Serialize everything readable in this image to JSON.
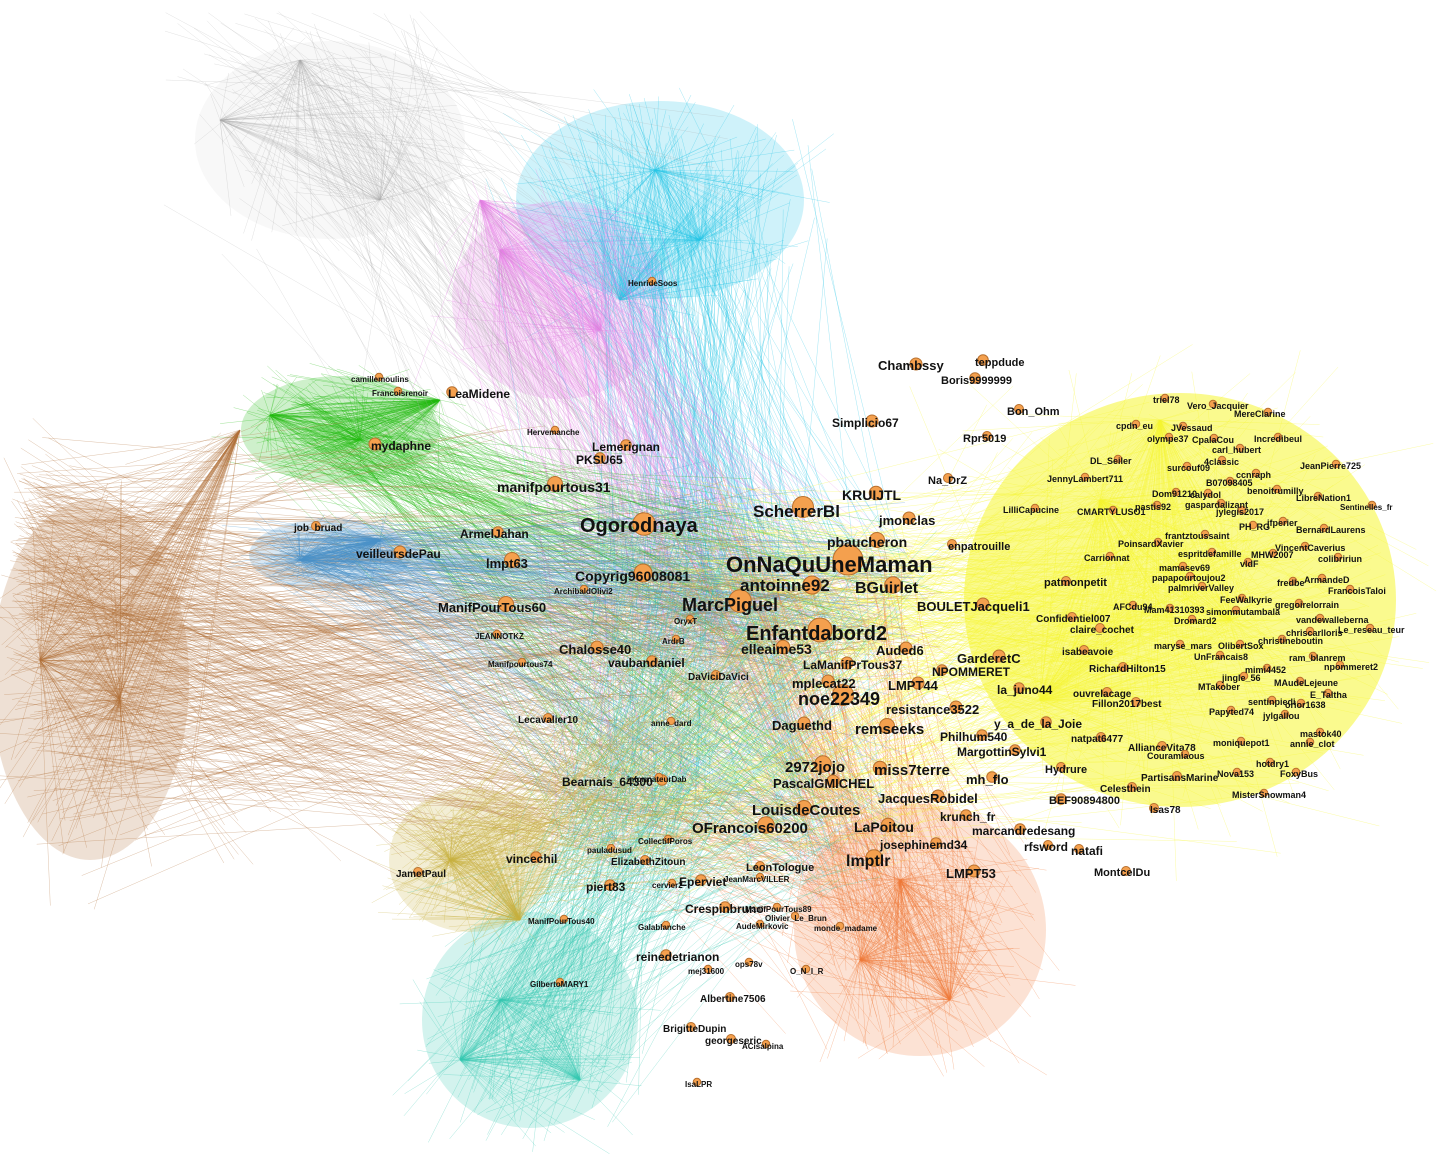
{
  "colors": {
    "node_fill": "#f4a04e",
    "node_stroke": "#b8702e",
    "label": "#111111",
    "background": "#ffffff"
  },
  "clusters": [
    {
      "name": "cyan",
      "color": "#26c6e6"
    },
    {
      "name": "pink",
      "color": "#e680e6"
    },
    {
      "name": "green",
      "color": "#22bb11"
    },
    {
      "name": "yellow",
      "color": "#f5f532"
    },
    {
      "name": "brown",
      "color": "#b0703a"
    },
    {
      "name": "steel",
      "color": "#4a90c8"
    },
    {
      "name": "orange",
      "color": "#f07a3a"
    },
    {
      "name": "teal",
      "color": "#35c9b0"
    },
    {
      "name": "olive",
      "color": "#c8b040"
    },
    {
      "name": "grey",
      "color": "#aaaaaa"
    }
  ],
  "nodes": [
    {
      "id": "OnNaQuUneMaman",
      "size": 20,
      "label_size": 22
    },
    {
      "id": "Ogorodnaya",
      "size": 15,
      "label_size": 20
    },
    {
      "id": "Enfantdabord2",
      "size": 16,
      "label_size": 20
    },
    {
      "id": "MarcPiguel",
      "size": 15,
      "label_size": 18
    },
    {
      "id": "noe22349",
      "size": 14,
      "label_size": 18
    },
    {
      "id": "ScherrerBl",
      "size": 14,
      "label_size": 17
    },
    {
      "id": "antoinne92",
      "size": 12,
      "label_size": 17
    },
    {
      "id": "BGuirlet",
      "size": 11,
      "label_size": 16
    },
    {
      "id": "Copyrig96008081",
      "size": 12,
      "label_size": 14
    },
    {
      "id": "manifpourtous31",
      "size": 10,
      "label_size": 14
    },
    {
      "id": "ManifPourTous60",
      "size": 10,
      "label_size": 13
    },
    {
      "id": "lmpt63",
      "size": 10,
      "label_size": 13
    },
    {
      "id": "KRUIJTL",
      "size": 9,
      "label_size": 14
    },
    {
      "id": "pbaucheron",
      "size": 10,
      "label_size": 14
    },
    {
      "id": "jmonclas",
      "size": 8,
      "label_size": 13
    },
    {
      "id": "2972jojo",
      "size": 11,
      "label_size": 15
    },
    {
      "id": "miss7terre",
      "size": 9,
      "label_size": 15
    },
    {
      "id": "remseeks",
      "size": 10,
      "label_size": 15
    },
    {
      "id": "OFrancois60200",
      "size": 11,
      "label_size": 15
    },
    {
      "id": "LouisdeCoutes",
      "size": 10,
      "label_size": 15
    },
    {
      "id": "lmptlr",
      "size": 11,
      "label_size": 16
    },
    {
      "id": "LaPoitou",
      "size": 9,
      "label_size": 14
    },
    {
      "id": "Chambssy",
      "size": 8,
      "label_size": 13
    },
    {
      "id": "teppdude",
      "size": 7,
      "label_size": 11
    },
    {
      "id": "Boris9999999",
      "size": 7,
      "label_size": 11
    },
    {
      "id": "Simplicio67",
      "size": 8,
      "label_size": 12
    },
    {
      "id": "Rpr5019",
      "size": 6,
      "label_size": 11
    },
    {
      "id": "Na_DrZ",
      "size": 6,
      "label_size": 11
    },
    {
      "id": "Bon_Ohm",
      "size": 6,
      "label_size": 11
    },
    {
      "id": "enpatrouille",
      "size": 6,
      "label_size": 11
    },
    {
      "id": "BOULETJacqueli1",
      "size": 8,
      "label_size": 13
    },
    {
      "id": "GarderetC",
      "size": 8,
      "label_size": 13
    },
    {
      "id": "NPOMMERET",
      "size": 7,
      "label_size": 12
    },
    {
      "id": "la_juno44",
      "size": 7,
      "label_size": 12
    },
    {
      "id": "resistance3522",
      "size": 8,
      "label_size": 13
    },
    {
      "id": "y_a_de_la_Joie",
      "size": 7,
      "label_size": 12
    },
    {
      "id": "Philhum540",
      "size": 7,
      "label_size": 12
    },
    {
      "id": "MargottinSylvi1",
      "size": 7,
      "label_size": 12
    },
    {
      "id": "mh_flo",
      "size": 7,
      "label_size": 13
    },
    {
      "id": "Hydrure",
      "size": 6,
      "label_size": 11
    },
    {
      "id": "JacquesRobidel",
      "size": 8,
      "label_size": 13
    },
    {
      "id": "BEF90894800",
      "size": 7,
      "label_size": 11
    },
    {
      "id": "krunch_fr",
      "size": 7,
      "label_size": 12
    },
    {
      "id": "marcandredesang",
      "size": 7,
      "label_size": 12
    },
    {
      "id": "rfsword",
      "size": 6,
      "label_size": 12
    },
    {
      "id": "natafi",
      "size": 6,
      "label_size": 12
    },
    {
      "id": "josephinemd34",
      "size": 7,
      "label_size": 12
    },
    {
      "id": "LMPT53",
      "size": 8,
      "label_size": 13
    },
    {
      "id": "MontcelDu",
      "size": 6,
      "label_size": 11
    },
    {
      "id": "Isas78",
      "size": 6,
      "label_size": 10
    },
    {
      "id": "PascalGMICHEL",
      "size": 8,
      "label_size": 13
    },
    {
      "id": "Daguethd",
      "size": 8,
      "label_size": 13
    },
    {
      "id": "LMPT44",
      "size": 8,
      "label_size": 13
    },
    {
      "id": "mplecat22",
      "size": 8,
      "label_size": 13
    },
    {
      "id": "LaManifPrTous37",
      "size": 8,
      "label_size": 12
    },
    {
      "id": "Auded6",
      "size": 8,
      "label_size": 13
    },
    {
      "id": "elleaime53",
      "size": 9,
      "label_size": 14
    },
    {
      "id": "Chalosse40",
      "size": 8,
      "label_size": 13
    },
    {
      "id": "vaubandaniel",
      "size": 7,
      "label_size": 12
    },
    {
      "id": "veilleursdePau",
      "size": 8,
      "label_size": 12
    },
    {
      "id": "ArmelJahan",
      "size": 7,
      "label_size": 12
    },
    {
      "id": "mydaphne",
      "size": 8,
      "label_size": 12
    },
    {
      "id": "LeaMidene",
      "size": 7,
      "label_size": 12
    },
    {
      "id": "Lemerignan",
      "size": 7,
      "label_size": 12
    },
    {
      "id": "PKSU65",
      "size": 7,
      "label_size": 12
    },
    {
      "id": "Bearnais_64300",
      "size": 7,
      "label_size": 12
    },
    {
      "id": "vincechil",
      "size": 7,
      "label_size": 12
    },
    {
      "id": "JametPaul",
      "size": 6,
      "label_size": 10
    },
    {
      "id": "piert83",
      "size": 7,
      "label_size": 12
    },
    {
      "id": "Eperviet",
      "size": 7,
      "label_size": 12
    },
    {
      "id": "Crespinbruno",
      "size": 7,
      "label_size": 12
    },
    {
      "id": "reinedetrianon",
      "size": 7,
      "label_size": 12
    },
    {
      "id": "Albertine7506",
      "size": 6,
      "label_size": 10
    },
    {
      "id": "BrigitteDupin",
      "size": 6,
      "label_size": 10
    },
    {
      "id": "georgeseric",
      "size": 6,
      "label_size": 10
    },
    {
      "id": "LeonTologue",
      "size": 6,
      "label_size": 11
    },
    {
      "id": "ElizabethZitoun",
      "size": 6,
      "label_size": 10
    },
    {
      "id": "Lecavalier10",
      "size": 6,
      "label_size": 10
    },
    {
      "id": "DaViciDaVici",
      "size": 6,
      "label_size": 10
    },
    {
      "id": "job_bruad",
      "size": 6,
      "label_size": 10
    },
    {
      "id": "patmonpetit",
      "size": 6,
      "label_size": 11
    },
    {
      "id": "Confidentiel007",
      "size": 6,
      "label_size": 10
    },
    {
      "id": "claire_cochet",
      "size": 6,
      "label_size": 10
    },
    {
      "id": "isabeavoie",
      "size": 6,
      "label_size": 10
    },
    {
      "id": "RichardHilton15",
      "size": 6,
      "label_size": 10
    },
    {
      "id": "ouvrelacage",
      "size": 6,
      "label_size": 10
    },
    {
      "id": "Fillon2017best",
      "size": 6,
      "label_size": 10
    },
    {
      "id": "natpat6477",
      "size": 6,
      "label_size": 10
    },
    {
      "id": "AllianceVita78",
      "size": 6,
      "label_size": 10
    },
    {
      "id": "Couramiaous",
      "size": 5,
      "label_size": 9
    },
    {
      "id": "PartisansMarine",
      "size": 6,
      "label_size": 10
    },
    {
      "id": "Celesthein",
      "size": 6,
      "label_size": 10
    },
    {
      "id": "MisterSnowman4",
      "size": 5,
      "label_size": 9
    },
    {
      "id": "Nova153",
      "size": 5,
      "label_size": 9
    },
    {
      "id": "FoxyBus",
      "size": 5,
      "label_size": 9
    },
    {
      "id": "hotdry1",
      "size": 5,
      "label_size": 9
    },
    {
      "id": "moniquepot1",
      "size": 5,
      "label_size": 9
    },
    {
      "id": "annie_clot",
      "size": 5,
      "label_size": 9
    },
    {
      "id": "mastok40",
      "size": 5,
      "label_size": 9
    },
    {
      "id": "Papyted74",
      "size": 5,
      "label_size": 9
    },
    {
      "id": "jylgallou",
      "size": 5,
      "label_size": 9
    },
    {
      "id": "orior1638",
      "size": 5,
      "label_size": 9
    },
    {
      "id": "sentinpiedi",
      "size": 5,
      "label_size": 9
    },
    {
      "id": "E_Taltha",
      "size": 5,
      "label_size": 9
    },
    {
      "id": "MTakober",
      "size": 5,
      "label_size": 9
    },
    {
      "id": "MAudeLejeune",
      "size": 5,
      "label_size": 9
    },
    {
      "id": "jingle_56",
      "size": 5,
      "label_size": 9
    },
    {
      "id": "mimi4452",
      "size": 5,
      "label_size": 9
    },
    {
      "id": "npommeret2",
      "size": 5,
      "label_size": 9
    },
    {
      "id": "ram_blanrem",
      "size": 5,
      "label_size": 9
    },
    {
      "id": "UnFrancais8",
      "size": 5,
      "label_size": 9
    },
    {
      "id": "maryse_mars",
      "size": 5,
      "label_size": 9
    },
    {
      "id": "OlibertSox",
      "size": 5,
      "label_size": 9
    },
    {
      "id": "christineboutin",
      "size": 5,
      "label_size": 9
    },
    {
      "id": "chriscarlloris",
      "size": 5,
      "label_size": 9
    },
    {
      "id": "Le_reseau_teur",
      "size": 5,
      "label_size": 9
    },
    {
      "id": "vandewalleberna",
      "size": 5,
      "label_size": 9
    },
    {
      "id": "gregoirelorrain",
      "size": 5,
      "label_size": 9
    },
    {
      "id": "FeeWalkyrie",
      "size": 5,
      "label_size": 9
    },
    {
      "id": "simonmutambala",
      "size": 5,
      "label_size": 9
    },
    {
      "id": "AFCdu94",
      "size": 5,
      "label_size": 9
    },
    {
      "id": "Mam41310393",
      "size": 5,
      "label_size": 9
    },
    {
      "id": "Dromard2",
      "size": 5,
      "label_size": 9
    },
    {
      "id": "fredbe",
      "size": 5,
      "label_size": 9
    },
    {
      "id": "ArmandeD",
      "size": 5,
      "label_size": 9
    },
    {
      "id": "FrancoisTaloi",
      "size": 5,
      "label_size": 9
    },
    {
      "id": "palmriverValley",
      "size": 5,
      "label_size": 9
    },
    {
      "id": "papapourtoujou2",
      "size": 5,
      "label_size": 9
    },
    {
      "id": "mamasev69",
      "size": 5,
      "label_size": 9
    },
    {
      "id": "Carrionnat",
      "size": 5,
      "label_size": 9
    },
    {
      "id": "vldF",
      "size": 5,
      "label_size": 9
    },
    {
      "id": "MHW2007",
      "size": 5,
      "label_size": 9
    },
    {
      "id": "VincentCaverius",
      "size": 5,
      "label_size": 9
    },
    {
      "id": "colibririun",
      "size": 5,
      "label_size": 9
    },
    {
      "id": "espritdefamille",
      "size": 5,
      "label_size": 9
    },
    {
      "id": "PoinsardXavier",
      "size": 5,
      "label_size": 9
    },
    {
      "id": "frantztoussaint",
      "size": 5,
      "label_size": 9
    },
    {
      "id": "PH_RG",
      "size": 5,
      "label_size": 9
    },
    {
      "id": "jfperier",
      "size": 5,
      "label_size": 9
    },
    {
      "id": "BernardLaurens",
      "size": 5,
      "label_size": 9
    },
    {
      "id": "jylegis2017",
      "size": 5,
      "label_size": 9
    },
    {
      "id": "CMARTYLUSO1",
      "size": 5,
      "label_size": 9
    },
    {
      "id": "pastis92",
      "size": 5,
      "label_size": 9
    },
    {
      "id": "gaspardalizant",
      "size": 5,
      "label_size": 9
    },
    {
      "id": "LilliCapucine",
      "size": 5,
      "label_size": 9
    },
    {
      "id": "Dom91210",
      "size": 5,
      "label_size": 9
    },
    {
      "id": "calydol",
      "size": 5,
      "label_size": 9
    },
    {
      "id": "JennyLambert711",
      "size": 5,
      "label_size": 9
    },
    {
      "id": "B07098405",
      "size": 5,
      "label_size": 9
    },
    {
      "id": "benoitrumilly",
      "size": 5,
      "label_size": 9
    },
    {
      "id": "LibreNation1",
      "size": 5,
      "label_size": 9
    },
    {
      "id": "Sentinelles_fr",
      "size": 5,
      "label_size": 8
    },
    {
      "id": "DL_Seiler",
      "size": 5,
      "label_size": 9
    },
    {
      "id": "surcouf09",
      "size": 5,
      "label_size": 9
    },
    {
      "id": "4classic",
      "size": 5,
      "label_size": 9
    },
    {
      "id": "ccnraph",
      "size": 5,
      "label_size": 9
    },
    {
      "id": "JeanPierre725",
      "size": 5,
      "label_size": 9
    },
    {
      "id": "cpdn_eu",
      "size": 5,
      "label_size": 9
    },
    {
      "id": "JVessaud",
      "size": 5,
      "label_size": 9
    },
    {
      "id": "olympe37",
      "size": 5,
      "label_size": 9
    },
    {
      "id": "CpalaCou",
      "size": 5,
      "label_size": 9
    },
    {
      "id": "carl_hubert",
      "size": 5,
      "label_size": 9
    },
    {
      "id": "Incredibeul",
      "size": 5,
      "label_size": 9
    },
    {
      "id": "triel78",
      "size": 5,
      "label_size": 9
    },
    {
      "id": "Vero_Jacquier",
      "size": 5,
      "label_size": 9
    },
    {
      "id": "MereClarine",
      "size": 5,
      "label_size": 9
    },
    {
      "id": "HenrideSoos",
      "size": 5,
      "label_size": 8
    },
    {
      "id": "Hervemanche",
      "size": 5,
      "label_size": 8
    },
    {
      "id": "Francoisrenoir",
      "size": 5,
      "label_size": 8
    },
    {
      "id": "camillemoulins",
      "size": 5,
      "label_size": 8
    },
    {
      "id": "Manifpourtous74",
      "size": 5,
      "label_size": 8
    },
    {
      "id": "JEANNOTKZ",
      "size": 5,
      "label_size": 8
    },
    {
      "id": "ArchibaldOlivi2",
      "size": 5,
      "label_size": 8
    },
    {
      "id": "OryxT",
      "size": 5,
      "label_size": 8
    },
    {
      "id": "ArdrB",
      "size": 5,
      "label_size": 8
    },
    {
      "id": "anne_dard",
      "size": 5,
      "label_size": 8
    },
    {
      "id": "informateurDab",
      "size": 5,
      "label_size": 8
    },
    {
      "id": "CollectifPoros",
      "size": 5,
      "label_size": 8
    },
    {
      "id": "pauladusud",
      "size": 5,
      "label_size": 8
    },
    {
      "id": "cervier2",
      "size": 5,
      "label_size": 8
    },
    {
      "id": "JeanMarcVILLER",
      "size": 5,
      "label_size": 8
    },
    {
      "id": "ManifPourTous89",
      "size": 5,
      "label_size": 8
    },
    {
      "id": "Olivier_Le_Brun",
      "size": 5,
      "label_size": 8
    },
    {
      "id": "AudeMirkovic",
      "size": 5,
      "label_size": 8
    },
    {
      "id": "monde_madame",
      "size": 5,
      "label_size": 8
    },
    {
      "id": "Galablanche",
      "size": 5,
      "label_size": 8
    },
    {
      "id": "ManifPourTous40",
      "size": 5,
      "label_size": 8
    },
    {
      "id": "GilbertoMARY1",
      "size": 5,
      "label_size": 8
    },
    {
      "id": "ops78v",
      "size": 5,
      "label_size": 8
    },
    {
      "id": "mej31600",
      "size": 5,
      "label_size": 8
    },
    {
      "id": "O_N_I_R",
      "size": 5,
      "label_size": 8
    },
    {
      "id": "ACisalpina",
      "size": 5,
      "label_size": 8
    },
    {
      "id": "IsaLPR",
      "size": 5,
      "label_size": 8
    }
  ]
}
